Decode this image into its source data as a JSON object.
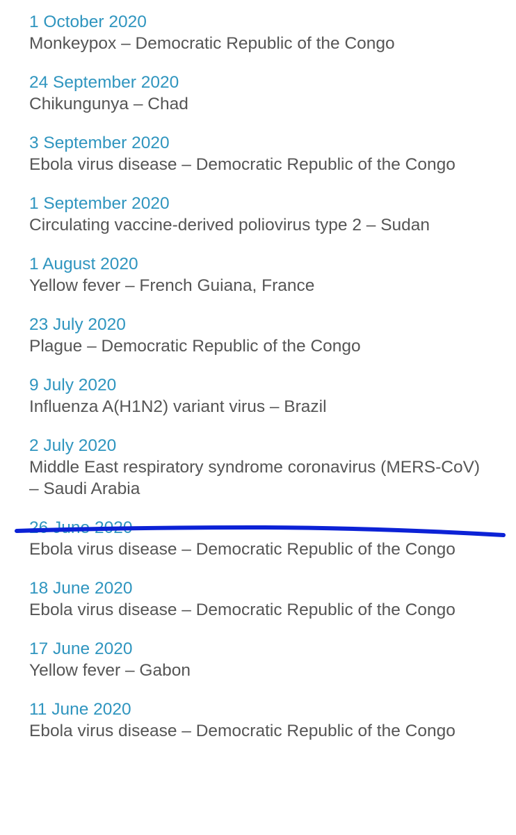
{
  "colors": {
    "date_link": "#2f95bf",
    "title_text": "#555555",
    "marker_stroke": "#0c22d6",
    "background": "#ffffff"
  },
  "items": [
    {
      "date": "1 October 2020",
      "title": "Monkeypox – Democratic Republic of the Congo"
    },
    {
      "date": "24 September 2020",
      "title": "Chikungunya – Chad"
    },
    {
      "date": "3 September 2020",
      "title": "Ebola virus disease – Democratic Republic of the Congo"
    },
    {
      "date": "1 September 2020",
      "title": "Circulating vaccine-derived poliovirus type 2 – Sudan"
    },
    {
      "date": "1 August 2020",
      "title": "Yellow fever – French Guiana, France"
    },
    {
      "date": "23 July 2020",
      "title": "Plague – Democratic Republic of the Congo"
    },
    {
      "date": "9 July 2020",
      "title": "Influenza A(H1N2) variant virus – Brazil"
    },
    {
      "date": "2 July 2020",
      "title": "Middle East respiratory syndrome coronavirus (MERS-CoV) – Saudi Arabia"
    },
    {
      "date": "26 June 2020",
      "title": "Ebola virus disease – Democratic Republic of the Congo"
    },
    {
      "date": "18 June 2020",
      "title": "Ebola virus disease – Democratic Republic of the Congo"
    },
    {
      "date": "17 June 2020",
      "title": "Yellow fever – Gabon"
    },
    {
      "date": "11 June 2020",
      "title": "Ebola virus disease – Democratic Republic of the Congo"
    }
  ]
}
